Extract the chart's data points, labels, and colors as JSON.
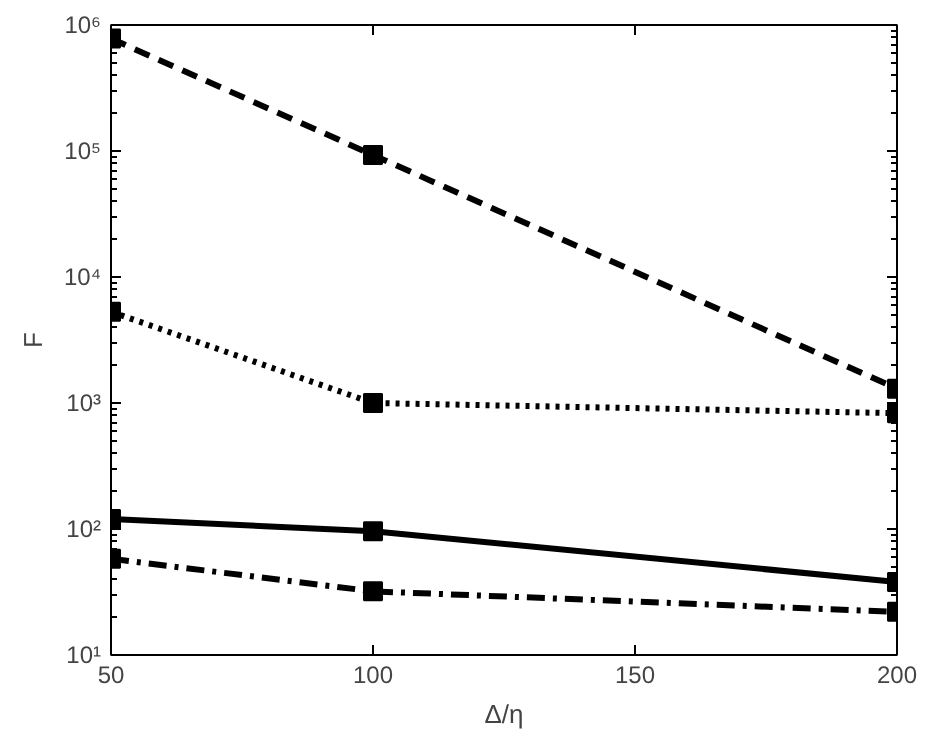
{
  "chart_data": {
    "type": "line",
    "xlabel": "Δ/η",
    "ylabel": "F",
    "x": [
      50,
      100,
      200
    ],
    "log": "y",
    "grid": false,
    "marker": "square",
    "xlim": [
      50,
      200
    ],
    "xticks": [
      50,
      100,
      150,
      200
    ],
    "ylim": [
      10,
      1000000
    ],
    "yticks": [
      {
        "value": 10,
        "label": "10¹"
      },
      {
        "value": 100,
        "label": "10²"
      },
      {
        "value": 1000,
        "label": "10³"
      },
      {
        "value": 10000,
        "label": "10⁴"
      },
      {
        "value": 100000,
        "label": "10⁵"
      },
      {
        "value": 1000000,
        "label": "10⁶"
      }
    ],
    "series": [
      {
        "color": "#000000",
        "line_style": "dashed",
        "values": [
          780000,
          93000,
          1300
        ]
      },
      {
        "color": "#000000",
        "line_style": "dotted",
        "values": [
          5300,
          1000,
          830
        ]
      },
      {
        "color": "#000000",
        "line_style": "solid",
        "values": [
          120,
          96,
          38
        ]
      },
      {
        "color": "#000000",
        "line_style": "dashdot",
        "values": [
          58,
          32,
          22
        ]
      }
    ]
  }
}
